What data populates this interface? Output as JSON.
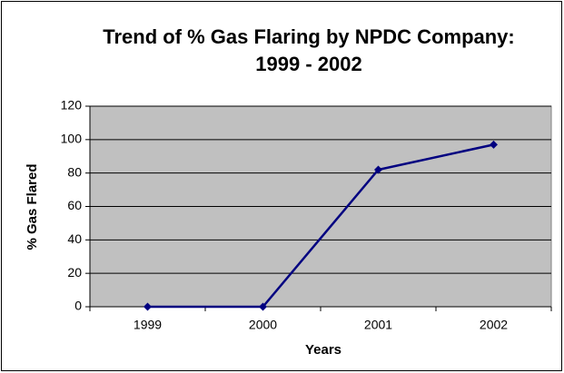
{
  "chart_data": {
    "type": "line",
    "title": [
      "Trend of % Gas Flaring by NPDC Company:",
      "1999 - 2002"
    ],
    "x_label": "Years",
    "y_label": "% Gas Flared",
    "categories": [
      "1999",
      "2000",
      "2001",
      "2002"
    ],
    "series": [
      {
        "name": "% Gas Flared",
        "color": "#000080",
        "values": [
          0,
          0,
          82,
          97
        ]
      }
    ],
    "ylim": [
      0,
      120
    ],
    "yticks": [
      0,
      20,
      40,
      60,
      80,
      100,
      120
    ],
    "grid": true,
    "plot_background": "#c0c0c0"
  }
}
